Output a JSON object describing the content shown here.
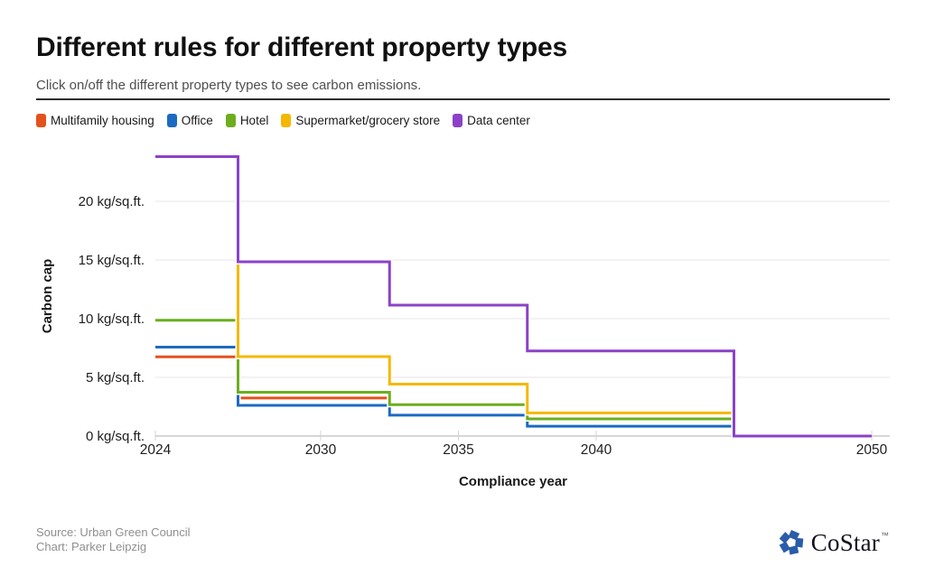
{
  "header": {
    "title": "Different rules for different property types",
    "subtitle": "Click on/off the different property types to see carbon emissions."
  },
  "chart_data": {
    "type": "line",
    "step": "center",
    "title": "Different rules for different property types",
    "xlabel": "Compliance year",
    "ylabel": "Carbon cap",
    "x": [
      2024,
      2030,
      2035,
      2040,
      2050
    ],
    "series": [
      {
        "name": "Multifamily housing",
        "color": "#e4521b",
        "values": [
          6.75,
          3.24,
          2.67,
          1.46,
          0
        ]
      },
      {
        "name": "Office",
        "color": "#1d6ac1",
        "values": [
          7.58,
          2.62,
          1.78,
          0.84,
          0
        ]
      },
      {
        "name": "Hotel",
        "color": "#6cae1e",
        "values": [
          9.87,
          3.73,
          2.67,
          1.46,
          0
        ]
      },
      {
        "name": "Supermarket/grocery store",
        "color": "#f5b800",
        "values": [
          23.81,
          6.77,
          4.42,
          1.97,
          0
        ]
      },
      {
        "name": "Data center",
        "color": "#8b42c8",
        "values": [
          23.81,
          14.85,
          11.15,
          7.25,
          0
        ]
      }
    ],
    "y_ticks": [
      {
        "value": 0,
        "label": "0 kg/sq.ft."
      },
      {
        "value": 5,
        "label": "5 kg/sq.ft."
      },
      {
        "value": 10,
        "label": "10 kg/sq.ft."
      },
      {
        "value": 15,
        "label": "15 kg/sq.ft."
      },
      {
        "value": 20,
        "label": "20 kg/sq.ft."
      }
    ],
    "x_ticks": [
      {
        "value": 2024,
        "label": "2024"
      },
      {
        "value": 2030,
        "label": "2030"
      },
      {
        "value": 2035,
        "label": "2035"
      },
      {
        "value": 2040,
        "label": "2040"
      },
      {
        "value": 2050,
        "label": "2050"
      }
    ],
    "xlim": [
      2024,
      2050
    ],
    "ylim": [
      0,
      24.5
    ],
    "grid": "horizontal",
    "legend_position": "top"
  },
  "footer": {
    "source": "Source: Urban Green Council",
    "credit": "Chart: Parker Leipzig",
    "logo_text": "CoStar",
    "logo_tm": "TM"
  }
}
